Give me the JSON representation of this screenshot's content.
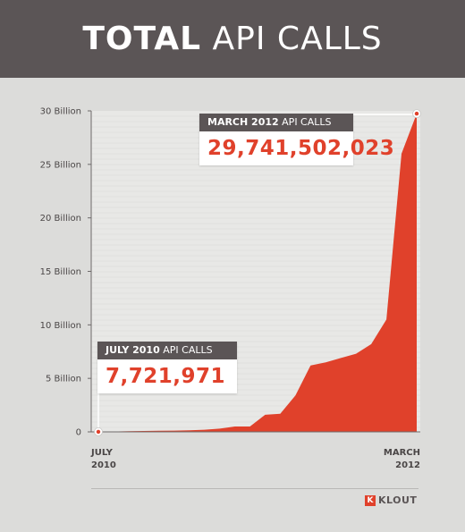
{
  "header": {
    "title_bold": "TOTAL",
    "title_rest": "API CALLS"
  },
  "callouts": {
    "march": {
      "label_bold": "MARCH 2012",
      "label_rest": "API CALLS",
      "value": "29,741,502,023"
    },
    "july": {
      "label_bold": "JULY 2010",
      "label_rest": "API CALLS",
      "value": "7,721,971"
    }
  },
  "logo": {
    "text": "KLOUT",
    "mark": "K"
  },
  "colors": {
    "header": "#5b5556",
    "area": "#e0412b",
    "background": "#dcdcda",
    "plot": "#e8e8e6"
  },
  "chart_data": {
    "type": "area",
    "title": "TOTAL API CALLS",
    "y_unit": "Billion",
    "ylim": [
      0,
      30
    ],
    "yticks": [
      0,
      5,
      10,
      15,
      20,
      25,
      30
    ],
    "ytick_labels": [
      "0",
      "5 Billion",
      "10 Billion",
      "15 Billion",
      "20 Billion",
      "25 Billion",
      "30 Billion"
    ],
    "x_labels": [
      {
        "position": "start",
        "lines": [
          "JULY",
          "2010"
        ]
      },
      {
        "position": "end",
        "lines": [
          "MARCH",
          "2012"
        ]
      }
    ],
    "series": [
      {
        "values": [
          0.008,
          0.03,
          0.06,
          0.08,
          0.1,
          0.12,
          0.15,
          0.2,
          0.3,
          0.5,
          0.5,
          1.6,
          1.7,
          3.4,
          6.2,
          6.5,
          6.9,
          7.3,
          8.2,
          10.5,
          26.0,
          29.74
        ]
      }
    ],
    "grid": true,
    "legend": "none"
  }
}
